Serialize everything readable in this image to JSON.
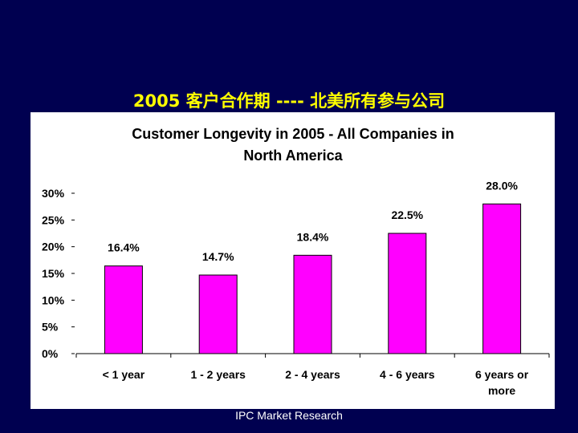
{
  "slide": {
    "title": "2005 客户合作期 ---- 北美所有参与公司",
    "footer": "IPC Market Research"
  },
  "colors": {
    "background": "#000050",
    "title": "#ffff00",
    "bar": "#ff00ff"
  },
  "chart_data": {
    "type": "bar",
    "title_lines": [
      "Customer Longevity in 2005 - All Companies in",
      "North America"
    ],
    "categories": [
      "< 1 year",
      "1 - 2 years",
      "2 - 4 years",
      "4 - 6 years",
      "6 years or more"
    ],
    "values": [
      16.4,
      14.7,
      18.4,
      22.5,
      28.0
    ],
    "data_labels": [
      "16.4%",
      "14.7%",
      "18.4%",
      "22.5%",
      "28.0%"
    ],
    "yticks": [
      0,
      5,
      10,
      15,
      20,
      25,
      30
    ],
    "ytick_labels": [
      "0%",
      "5%",
      "10%",
      "15%",
      "20%",
      "25%",
      "30%"
    ],
    "ylim": [
      0,
      30
    ],
    "xlabel": "",
    "ylabel": "",
    "grid": false,
    "legend": "none"
  }
}
